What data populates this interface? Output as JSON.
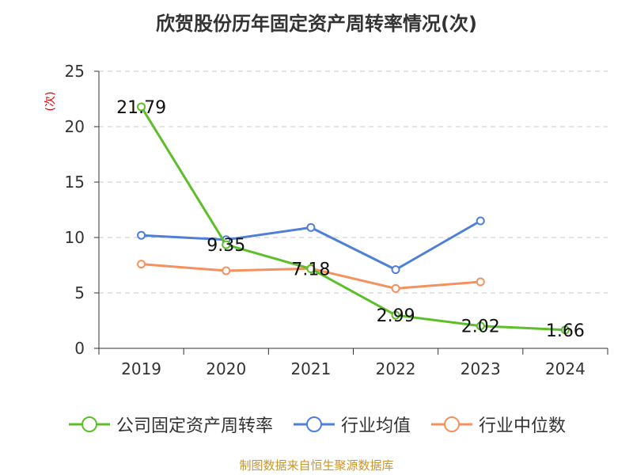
{
  "title": "欣贺股份历年固定资产周转率情况(次)",
  "source": "制图数据来自恒生聚源数据库",
  "chart_data": {
    "type": "line",
    "title": "欣贺股份历年固定资产周转率情况(次)",
    "y_unit": "(次)",
    "categories": [
      "2019",
      "2020",
      "2021",
      "2022",
      "2023",
      "2024"
    ],
    "ylim": [
      0,
      25
    ],
    "yticks": [
      0,
      5,
      10,
      15,
      20,
      25
    ],
    "grid": true,
    "legend_position": "bottom",
    "series": [
      {
        "name": "公司固定资产周转率",
        "color": "#5cbf2a",
        "values": [
          21.79,
          9.35,
          7.18,
          2.99,
          2.02,
          1.66
        ],
        "labels": true
      },
      {
        "name": "行业均值",
        "color": "#4f7fd8",
        "values": [
          10.2,
          9.8,
          10.9,
          7.1,
          11.5,
          null
        ],
        "labels": false
      },
      {
        "name": "行业中位数",
        "color": "#f4915e",
        "values": [
          7.6,
          7.0,
          7.2,
          5.4,
          6.0,
          null
        ],
        "labels": false
      }
    ]
  }
}
